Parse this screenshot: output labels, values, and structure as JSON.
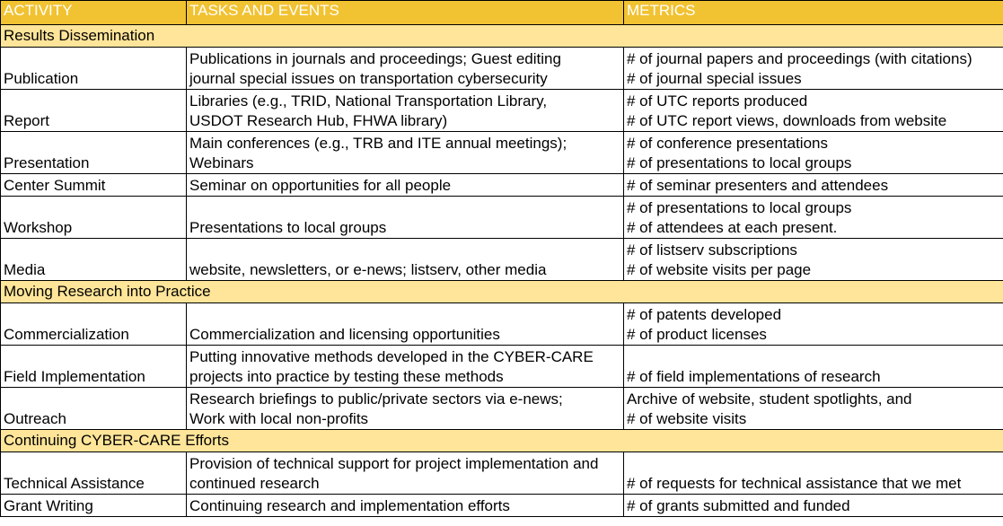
{
  "headers": {
    "activity": "ACTIVITY",
    "tasks": "TASKS AND EVENTS",
    "metrics": "METRICS"
  },
  "sections": [
    {
      "title": "Results Dissemination",
      "rows": [
        {
          "activity": "Publication",
          "tasks": [
            "Publications in journals and proceedings; Guest editing",
            "journal special issues on transportation cybersecurity"
          ],
          "metrics": [
            "# of journal papers and proceedings (with citations)",
            "# of journal special issues"
          ]
        },
        {
          "activity": "Report",
          "tasks": [
            "Libraries (e.g., TRID, National Transportation Library,",
            "USDOT Research Hub, FHWA library)"
          ],
          "metrics": [
            "# of UTC reports produced",
            "# of UTC report views, downloads from website"
          ]
        },
        {
          "activity": "Presentation",
          "tasks": [
            "Main conferences (e.g., TRB and ITE annual meetings);",
            "Webinars"
          ],
          "metrics": [
            "# of conference presentations",
            "# of presentations to local groups"
          ]
        },
        {
          "activity": "Center Summit",
          "tasks": [
            "Seminar on opportunities for all people"
          ],
          "metrics": [
            "# of seminar presenters and attendees"
          ]
        },
        {
          "activity": "Workshop",
          "tasks": [
            "",
            "Presentations to local groups"
          ],
          "metrics": [
            "# of presentations to local groups",
            "# of attendees at each present."
          ]
        },
        {
          "activity": "Media",
          "tasks": [
            "",
            "website, newsletters, or e-news; listserv, other media"
          ],
          "metrics": [
            "# of listserv subscriptions",
            "# of website visits per page"
          ]
        }
      ]
    },
    {
      "title": "Moving Research into Practice",
      "rows": [
        {
          "activity": "Commercialization",
          "tasks": [
            "",
            "Commercialization and licensing opportunities"
          ],
          "metrics": [
            "# of patents developed",
            "# of product licenses"
          ]
        },
        {
          "activity": "Field Implementation",
          "tasks": [
            "Putting innovative methods developed in the CYBER-CARE",
            "projects into practice by testing these methods"
          ],
          "metrics": [
            "",
            "# of field implementations of research"
          ]
        },
        {
          "activity": "Outreach",
          "tasks": [
            "Research briefings to public/private sectors via e-news;",
            "Work with local non-profits"
          ],
          "metrics": [
            "Archive of website, student spotlights, and",
            "# of website visits"
          ]
        }
      ]
    },
    {
      "title": "Continuing CYBER-CARE Efforts",
      "rows": [
        {
          "activity": "Technical Assistance",
          "tasks": [
            "Provision of technical support for project implementation and",
            "continued research"
          ],
          "metrics": [
            "",
            "# of requests for technical assistance that we met"
          ]
        },
        {
          "activity": "Grant Writing",
          "tasks": [
            "Continuing research and implementation efforts"
          ],
          "metrics": [
            "# of grants submitted and funded"
          ]
        }
      ]
    }
  ],
  "colors": {
    "header_bg": "#f1c232",
    "section_bg": "#ffe599"
  }
}
